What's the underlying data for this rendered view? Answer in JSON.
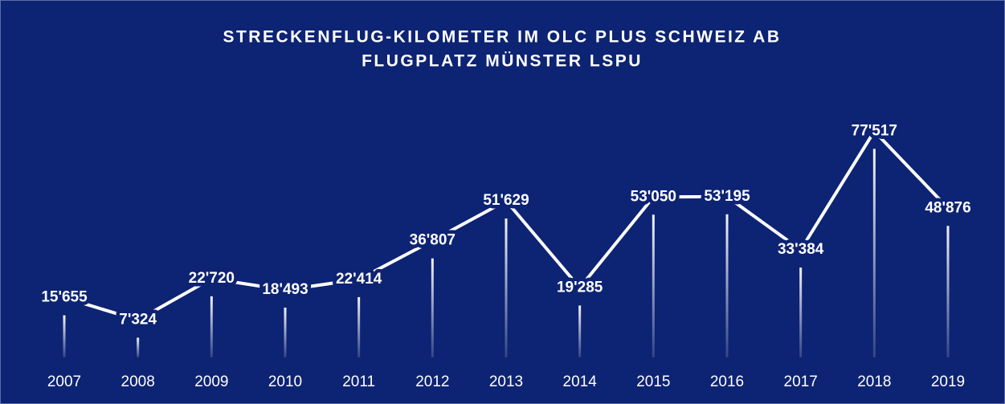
{
  "chart_data": {
    "type": "line",
    "title": [
      "STRECKENFLUG-KILOMETER IM OLC PLUS SCHWEIZ AB",
      "FLUGPLATZ MÜNSTER LSPU"
    ],
    "categories": [
      "2007",
      "2008",
      "2009",
      "2010",
      "2011",
      "2012",
      "2013",
      "2014",
      "2015",
      "2016",
      "2017",
      "2018",
      "2019"
    ],
    "values": [
      15655,
      7324,
      22720,
      18493,
      22414,
      36807,
      51629,
      19285,
      53050,
      53195,
      33384,
      77517,
      48876
    ],
    "value_labels": [
      "15'655",
      "7'324",
      "22'720",
      "18'493",
      "22'414",
      "36'807",
      "51'629",
      "19'285",
      "53'050",
      "53'195",
      "33'384",
      "77'517",
      "48'876"
    ],
    "color": "#ffffff",
    "background": "#0d2373",
    "ylim": [
      0,
      80000
    ]
  }
}
